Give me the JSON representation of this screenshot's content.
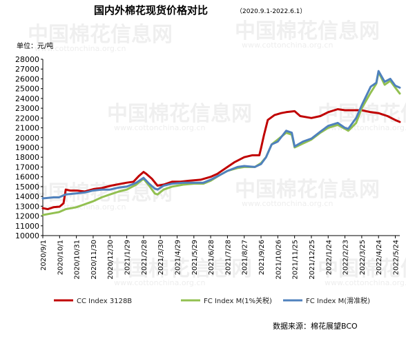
{
  "chart_data": {
    "type": "line",
    "title": "国内外棉花现货价格对比",
    "subtitle": "（2020.9.1-2022.6.1）",
    "unit_label": "单位：元/吨",
    "source": "数据来源：棉花展望BCO",
    "watermark": "中国棉花信息网",
    "watermark_url": "www.cottonchina.org.cn",
    "ylim": [
      10000,
      28000
    ],
    "ytick_step": 1000,
    "yticks": [
      "10000",
      "11000",
      "12000",
      "13000",
      "14000",
      "15000",
      "16000",
      "17000",
      "18000",
      "19000",
      "20000",
      "21000",
      "22000",
      "23000",
      "24000",
      "25000",
      "26000",
      "27000",
      "28000"
    ],
    "x_start": "2020/9/1",
    "x_end": "2022/6/1",
    "xticks": [
      "2020/9/1",
      "2020/10/1",
      "2020/10/31",
      "2020/11/30",
      "2020/12/30",
      "2021/1/29",
      "2021/2/28",
      "2021/3/30",
      "2021/4/29",
      "2021/5/29",
      "2021/6/28",
      "2021/7/28",
      "2021/8/27",
      "2021/9/26",
      "2021/10/26",
      "2021/11/25",
      "2021/12/25",
      "2022/1/24",
      "2022/2/23",
      "2022/3/25",
      "2022/4/24",
      "2022/5/24"
    ],
    "grid": false,
    "legend_position": "bottom",
    "series": [
      {
        "name": "CC Index 3128B",
        "color": "#c00000",
        "points": [
          [
            "2020/9/1",
            12800
          ],
          [
            "2020/9/10",
            12700
          ],
          [
            "2020/9/20",
            12900
          ],
          [
            "2020/10/1",
            12950
          ],
          [
            "2020/10/8",
            13300
          ],
          [
            "2020/10/12",
            14700
          ],
          [
            "2020/10/20",
            14600
          ],
          [
            "2020/11/1",
            14600
          ],
          [
            "2020/11/15",
            14500
          ],
          [
            "2020/12/1",
            14750
          ],
          [
            "2020/12/15",
            14850
          ],
          [
            "2021/1/1",
            15100
          ],
          [
            "2021/1/15",
            15250
          ],
          [
            "2021/1/29",
            15400
          ],
          [
            "2021/2/10",
            15500
          ],
          [
            "2021/2/20",
            16100
          ],
          [
            "2021/2/28",
            16500
          ],
          [
            "2021/3/5",
            16300
          ],
          [
            "2021/3/15",
            15800
          ],
          [
            "2021/3/25",
            15100
          ],
          [
            "2021/4/5",
            15200
          ],
          [
            "2021/4/20",
            15500
          ],
          [
            "2021/5/5",
            15500
          ],
          [
            "2021/5/20",
            15600
          ],
          [
            "2021/6/10",
            15700
          ],
          [
            "2021/6/28",
            16000
          ],
          [
            "2021/7/10",
            16300
          ],
          [
            "2021/7/28",
            17000
          ],
          [
            "2021/8/10",
            17500
          ],
          [
            "2021/8/27",
            18000
          ],
          [
            "2021/9/10",
            18200
          ],
          [
            "2021/9/23",
            18200
          ],
          [
            "2021/9/26",
            18900
          ],
          [
            "2021/10/1",
            20200
          ],
          [
            "2021/10/8",
            21800
          ],
          [
            "2021/10/20",
            22300
          ],
          [
            "2021/11/1",
            22500
          ],
          [
            "2021/11/10",
            22600
          ],
          [
            "2021/11/25",
            22700
          ],
          [
            "2021/12/5",
            22200
          ],
          [
            "2021/12/25",
            22000
          ],
          [
            "2022/1/10",
            22200
          ],
          [
            "2022/1/24",
            22600
          ],
          [
            "2022/2/10",
            22900
          ],
          [
            "2022/2/23",
            22800
          ],
          [
            "2022/3/10",
            22800
          ],
          [
            "2022/3/25",
            22800
          ],
          [
            "2022/4/10",
            22600
          ],
          [
            "2022/4/24",
            22500
          ],
          [
            "2022/5/10",
            22200
          ],
          [
            "2022/5/24",
            21800
          ],
          [
            "2022/6/1",
            21600
          ]
        ]
      },
      {
        "name": "FC Index M(1%关税)",
        "color": "#92c050",
        "points": [
          [
            "2020/9/1",
            12100
          ],
          [
            "2020/9/20",
            12300
          ],
          [
            "2020/9/30",
            12400
          ],
          [
            "2020/10/12",
            12700
          ],
          [
            "2020/10/31",
            12900
          ],
          [
            "2020/11/15",
            13200
          ],
          [
            "2020/11/30",
            13500
          ],
          [
            "2020/12/15",
            13900
          ],
          [
            "2020/12/30",
            14200
          ],
          [
            "2021/1/15",
            14500
          ],
          [
            "2021/1/29",
            14700
          ],
          [
            "2021/2/15",
            15200
          ],
          [
            "2021/2/28",
            15800
          ],
          [
            "2021/3/10",
            15100
          ],
          [
            "2021/3/20",
            14300
          ],
          [
            "2021/3/25",
            14200
          ],
          [
            "2021/4/5",
            14700
          ],
          [
            "2021/4/20",
            15000
          ],
          [
            "2021/5/10",
            15200
          ],
          [
            "2021/5/29",
            15300
          ],
          [
            "2021/6/15",
            15300
          ],
          [
            "2021/6/28",
            15600
          ],
          [
            "2021/7/15",
            16200
          ],
          [
            "2021/7/28",
            16600
          ],
          [
            "2021/8/15",
            16900
          ],
          [
            "2021/8/27",
            17000
          ],
          [
            "2021/9/15",
            17000
          ],
          [
            "2021/9/26",
            17400
          ],
          [
            "2021/10/5",
            18000
          ],
          [
            "2021/10/15",
            19300
          ],
          [
            "2021/10/26",
            19800
          ],
          [
            "2021/11/10",
            20500
          ],
          [
            "2021/11/20",
            20300
          ],
          [
            "2021/11/25",
            19000
          ],
          [
            "2021/12/10",
            19400
          ],
          [
            "2021/12/25",
            19800
          ],
          [
            "2022/1/10",
            20500
          ],
          [
            "2022/1/24",
            21000
          ],
          [
            "2022/2/10",
            21300
          ],
          [
            "2022/2/23",
            20900
          ],
          [
            "2022/3/1",
            20700
          ],
          [
            "2022/3/15",
            21500
          ],
          [
            "2022/3/25",
            23000
          ],
          [
            "2022/4/10",
            24600
          ],
          [
            "2022/4/20",
            25500
          ],
          [
            "2022/4/24",
            26700
          ],
          [
            "2022/5/5",
            25400
          ],
          [
            "2022/5/15",
            25800
          ],
          [
            "2022/5/24",
            25100
          ],
          [
            "2022/6/1",
            24500
          ]
        ]
      },
      {
        "name": "FC Index M(滑准税)",
        "color": "#4f81bd",
        "points": [
          [
            "2020/9/1",
            13800
          ],
          [
            "2020/9/20",
            13900
          ],
          [
            "2020/9/30",
            13900
          ],
          [
            "2020/10/12",
            14200
          ],
          [
            "2020/10/31",
            14300
          ],
          [
            "2020/11/15",
            14400
          ],
          [
            "2020/11/30",
            14600
          ],
          [
            "2020/12/15",
            14700
          ],
          [
            "2020/12/30",
            14700
          ],
          [
            "2021/1/15",
            14900
          ],
          [
            "2021/1/29",
            15000
          ],
          [
            "2021/2/15",
            15400
          ],
          [
            "2021/2/28",
            15900
          ],
          [
            "2021/3/10",
            15300
          ],
          [
            "2021/3/20",
            14800
          ],
          [
            "2021/3/25",
            14700
          ],
          [
            "2021/4/5",
            15100
          ],
          [
            "2021/4/20",
            15300
          ],
          [
            "2021/5/10",
            15400
          ],
          [
            "2021/5/29",
            15400
          ],
          [
            "2021/6/15",
            15400
          ],
          [
            "2021/6/28",
            15700
          ],
          [
            "2021/7/15",
            16200
          ],
          [
            "2021/7/28",
            16600
          ],
          [
            "2021/8/15",
            17000
          ],
          [
            "2021/8/27",
            17100
          ],
          [
            "2021/9/15",
            17000
          ],
          [
            "2021/9/26",
            17300
          ],
          [
            "2021/10/5",
            18000
          ],
          [
            "2021/10/15",
            19300
          ],
          [
            "2021/10/26",
            19600
          ],
          [
            "2021/11/10",
            20700
          ],
          [
            "2021/11/20",
            20500
          ],
          [
            "2021/11/25",
            19100
          ],
          [
            "2021/12/10",
            19600
          ],
          [
            "2021/12/25",
            19900
          ],
          [
            "2022/1/10",
            20600
          ],
          [
            "2022/1/24",
            21200
          ],
          [
            "2022/2/10",
            21500
          ],
          [
            "2022/2/23",
            21000
          ],
          [
            "2022/3/1",
            20900
          ],
          [
            "2022/3/15",
            22000
          ],
          [
            "2022/3/25",
            23300
          ],
          [
            "2022/4/10",
            25200
          ],
          [
            "2022/4/20",
            25600
          ],
          [
            "2022/4/24",
            26800
          ],
          [
            "2022/5/5",
            25700
          ],
          [
            "2022/5/15",
            26000
          ],
          [
            "2022/5/24",
            25300
          ],
          [
            "2022/6/1",
            25100
          ]
        ]
      }
    ]
  }
}
